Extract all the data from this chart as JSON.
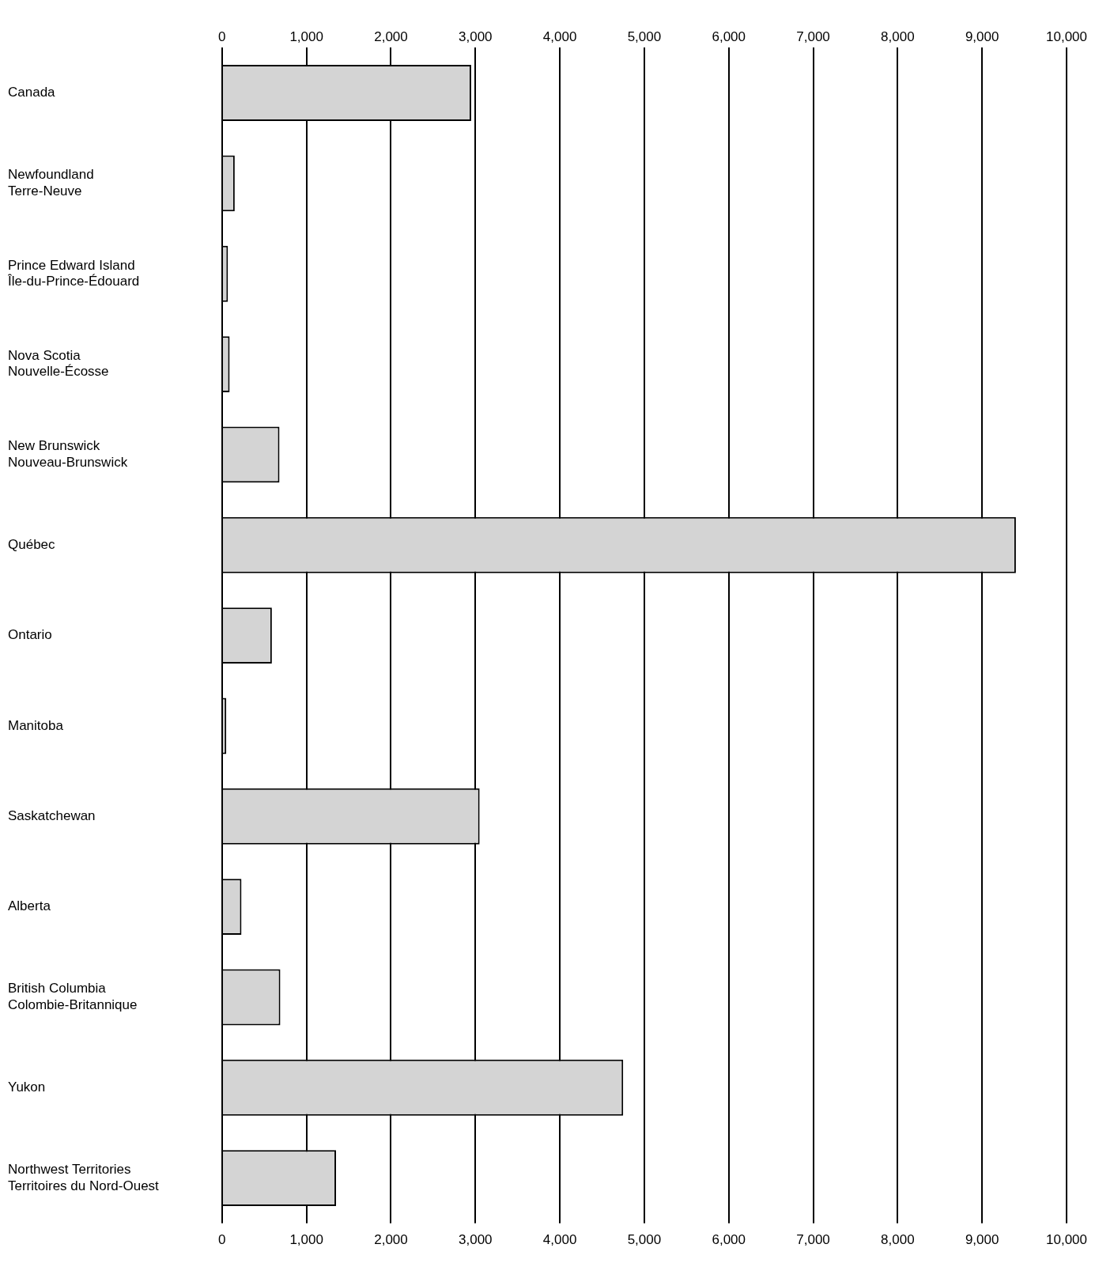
{
  "chart_data": {
    "type": "bar",
    "orientation": "horizontal",
    "categories": [
      "Canada",
      "Newfoundland\nTerre-Neuve",
      "Prince Edward Island\nÎle-du-Prince-Édouard",
      "Nova Scotia\nNouvelle-Écosse",
      "New Brunswick\nNouveau-Brunswick",
      "Québec",
      "Ontario",
      "Manitoba",
      "Saskatchewan",
      "Alberta",
      "British Columbia\nColombie-Britannique",
      "Yukon",
      "Northwest Territories\nTerritoires du Nord-Ouest"
    ],
    "values": [
      2950,
      150,
      70,
      90,
      680,
      9400,
      590,
      50,
      3050,
      230,
      690,
      4750,
      1350
    ],
    "color": "#d4d4d4",
    "xlim": [
      0,
      10000
    ],
    "xticks": [
      0,
      {
        "value": 1000,
        "label": "1,000"
      },
      {
        "value": 2000,
        "label": "2,000"
      },
      {
        "value": 3000,
        "label": "3,000"
      },
      {
        "value": 4000,
        "label": "4,000"
      },
      {
        "value": 5000,
        "label": "5,000"
      },
      {
        "value": 6000,
        "label": "6,000"
      },
      {
        "value": 7000,
        "label": "7,000"
      },
      {
        "value": 8000,
        "label": "8,000"
      },
      {
        "value": 9000,
        "label": "9,000"
      },
      {
        "value": 10000,
        "label": "10,000"
      }
    ],
    "x2lim": [
      0,
      10000
    ],
    "x2ticks": [
      0,
      {
        "value": 1000,
        "label": "1,000"
      },
      {
        "value": 2000,
        "label": "2,000"
      },
      {
        "value": 3000,
        "label": "3,000"
      },
      {
        "value": 4000,
        "label": "4,000"
      },
      {
        "value": 5000,
        "label": "5,000"
      },
      {
        "value": 6000,
        "label": "6,000"
      },
      {
        "value": 7000,
        "label": "7,000"
      },
      {
        "value": 8000,
        "label": "8,000"
      },
      {
        "value": 9000,
        "label": "9,000"
      },
      {
        "value": 10000,
        "label": "10,000"
      }
    ],
    "grid": "x",
    "legend": false
  }
}
